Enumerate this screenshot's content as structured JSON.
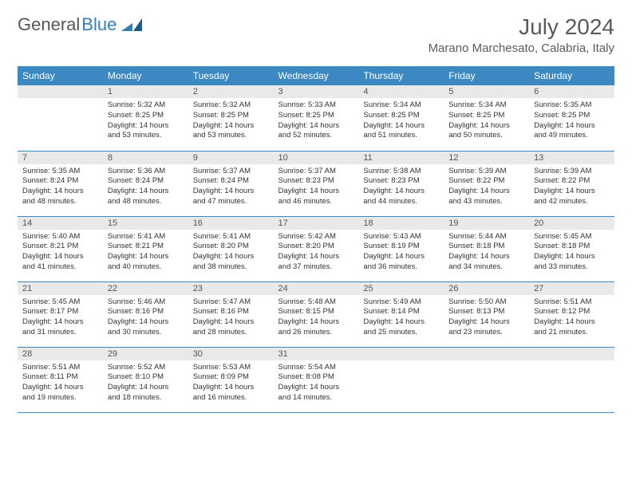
{
  "logo": {
    "text1": "General",
    "text2": "Blue"
  },
  "title": {
    "month_year": "July 2024",
    "location": "Marano Marchesato, Calabria, Italy"
  },
  "colors": {
    "header_bg": "#3b88c3",
    "daynum_bg": "#e9e9e9"
  },
  "day_names": [
    "Sunday",
    "Monday",
    "Tuesday",
    "Wednesday",
    "Thursday",
    "Friday",
    "Saturday"
  ],
  "weeks": [
    [
      null,
      {
        "n": "1",
        "sr": "Sunrise: 5:32 AM",
        "ss": "Sunset: 8:25 PM",
        "dl": "Daylight: 14 hours and 53 minutes."
      },
      {
        "n": "2",
        "sr": "Sunrise: 5:32 AM",
        "ss": "Sunset: 8:25 PM",
        "dl": "Daylight: 14 hours and 53 minutes."
      },
      {
        "n": "3",
        "sr": "Sunrise: 5:33 AM",
        "ss": "Sunset: 8:25 PM",
        "dl": "Daylight: 14 hours and 52 minutes."
      },
      {
        "n": "4",
        "sr": "Sunrise: 5:34 AM",
        "ss": "Sunset: 8:25 PM",
        "dl": "Daylight: 14 hours and 51 minutes."
      },
      {
        "n": "5",
        "sr": "Sunrise: 5:34 AM",
        "ss": "Sunset: 8:25 PM",
        "dl": "Daylight: 14 hours and 50 minutes."
      },
      {
        "n": "6",
        "sr": "Sunrise: 5:35 AM",
        "ss": "Sunset: 8:25 PM",
        "dl": "Daylight: 14 hours and 49 minutes."
      }
    ],
    [
      {
        "n": "7",
        "sr": "Sunrise: 5:35 AM",
        "ss": "Sunset: 8:24 PM",
        "dl": "Daylight: 14 hours and 48 minutes."
      },
      {
        "n": "8",
        "sr": "Sunrise: 5:36 AM",
        "ss": "Sunset: 8:24 PM",
        "dl": "Daylight: 14 hours and 48 minutes."
      },
      {
        "n": "9",
        "sr": "Sunrise: 5:37 AM",
        "ss": "Sunset: 8:24 PM",
        "dl": "Daylight: 14 hours and 47 minutes."
      },
      {
        "n": "10",
        "sr": "Sunrise: 5:37 AM",
        "ss": "Sunset: 8:23 PM",
        "dl": "Daylight: 14 hours and 46 minutes."
      },
      {
        "n": "11",
        "sr": "Sunrise: 5:38 AM",
        "ss": "Sunset: 8:23 PM",
        "dl": "Daylight: 14 hours and 44 minutes."
      },
      {
        "n": "12",
        "sr": "Sunrise: 5:39 AM",
        "ss": "Sunset: 8:22 PM",
        "dl": "Daylight: 14 hours and 43 minutes."
      },
      {
        "n": "13",
        "sr": "Sunrise: 5:39 AM",
        "ss": "Sunset: 8:22 PM",
        "dl": "Daylight: 14 hours and 42 minutes."
      }
    ],
    [
      {
        "n": "14",
        "sr": "Sunrise: 5:40 AM",
        "ss": "Sunset: 8:21 PM",
        "dl": "Daylight: 14 hours and 41 minutes."
      },
      {
        "n": "15",
        "sr": "Sunrise: 5:41 AM",
        "ss": "Sunset: 8:21 PM",
        "dl": "Daylight: 14 hours and 40 minutes."
      },
      {
        "n": "16",
        "sr": "Sunrise: 5:41 AM",
        "ss": "Sunset: 8:20 PM",
        "dl": "Daylight: 14 hours and 38 minutes."
      },
      {
        "n": "17",
        "sr": "Sunrise: 5:42 AM",
        "ss": "Sunset: 8:20 PM",
        "dl": "Daylight: 14 hours and 37 minutes."
      },
      {
        "n": "18",
        "sr": "Sunrise: 5:43 AM",
        "ss": "Sunset: 8:19 PM",
        "dl": "Daylight: 14 hours and 36 minutes."
      },
      {
        "n": "19",
        "sr": "Sunrise: 5:44 AM",
        "ss": "Sunset: 8:18 PM",
        "dl": "Daylight: 14 hours and 34 minutes."
      },
      {
        "n": "20",
        "sr": "Sunrise: 5:45 AM",
        "ss": "Sunset: 8:18 PM",
        "dl": "Daylight: 14 hours and 33 minutes."
      }
    ],
    [
      {
        "n": "21",
        "sr": "Sunrise: 5:45 AM",
        "ss": "Sunset: 8:17 PM",
        "dl": "Daylight: 14 hours and 31 minutes."
      },
      {
        "n": "22",
        "sr": "Sunrise: 5:46 AM",
        "ss": "Sunset: 8:16 PM",
        "dl": "Daylight: 14 hours and 30 minutes."
      },
      {
        "n": "23",
        "sr": "Sunrise: 5:47 AM",
        "ss": "Sunset: 8:16 PM",
        "dl": "Daylight: 14 hours and 28 minutes."
      },
      {
        "n": "24",
        "sr": "Sunrise: 5:48 AM",
        "ss": "Sunset: 8:15 PM",
        "dl": "Daylight: 14 hours and 26 minutes."
      },
      {
        "n": "25",
        "sr": "Sunrise: 5:49 AM",
        "ss": "Sunset: 8:14 PM",
        "dl": "Daylight: 14 hours and 25 minutes."
      },
      {
        "n": "26",
        "sr": "Sunrise: 5:50 AM",
        "ss": "Sunset: 8:13 PM",
        "dl": "Daylight: 14 hours and 23 minutes."
      },
      {
        "n": "27",
        "sr": "Sunrise: 5:51 AM",
        "ss": "Sunset: 8:12 PM",
        "dl": "Daylight: 14 hours and 21 minutes."
      }
    ],
    [
      {
        "n": "28",
        "sr": "Sunrise: 5:51 AM",
        "ss": "Sunset: 8:11 PM",
        "dl": "Daylight: 14 hours and 19 minutes."
      },
      {
        "n": "29",
        "sr": "Sunrise: 5:52 AM",
        "ss": "Sunset: 8:10 PM",
        "dl": "Daylight: 14 hours and 18 minutes."
      },
      {
        "n": "30",
        "sr": "Sunrise: 5:53 AM",
        "ss": "Sunset: 8:09 PM",
        "dl": "Daylight: 14 hours and 16 minutes."
      },
      {
        "n": "31",
        "sr": "Sunrise: 5:54 AM",
        "ss": "Sunset: 8:08 PM",
        "dl": "Daylight: 14 hours and 14 minutes."
      },
      null,
      null,
      null
    ]
  ]
}
